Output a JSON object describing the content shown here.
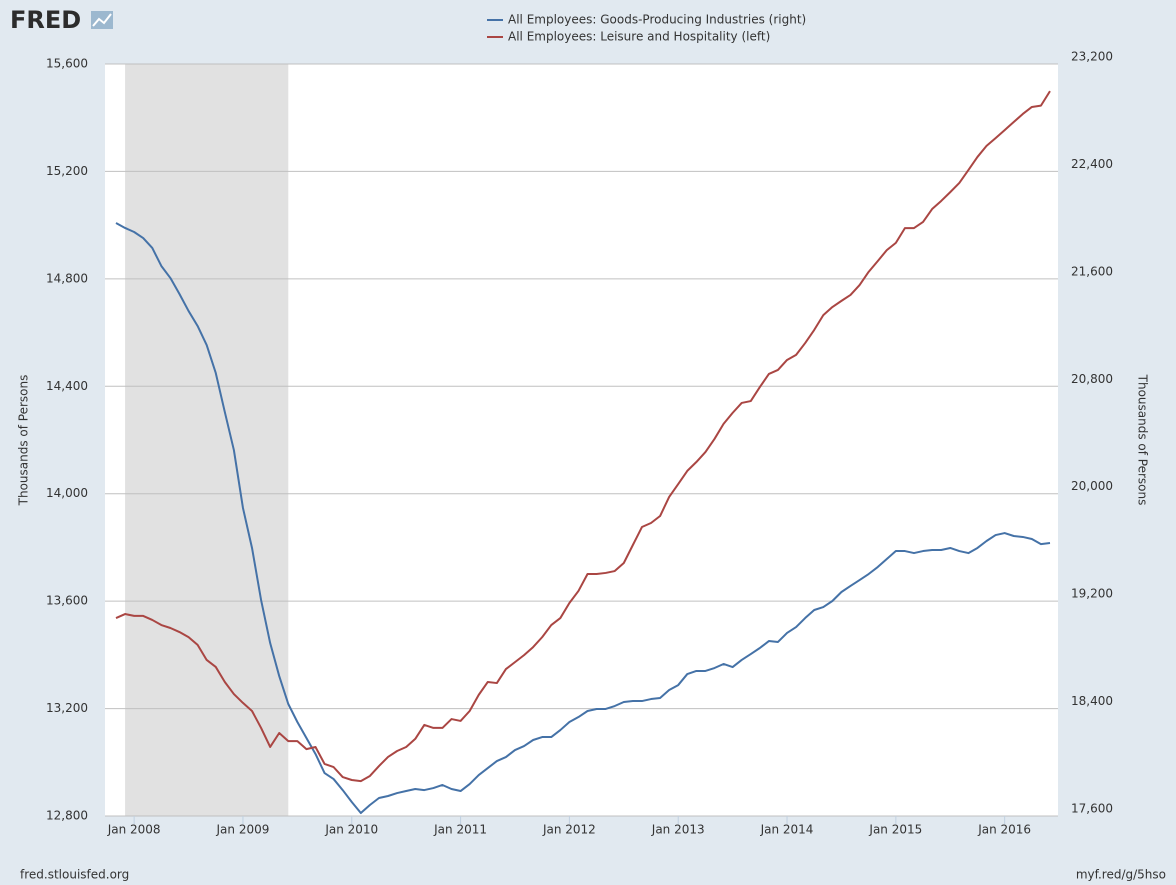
{
  "chart_data": {
    "type": "line",
    "logo": "FRED",
    "ylabel": "Thousands of Persons",
    "y2label": "Thousands of Persons",
    "source": "fred.stlouisfed.org",
    "link": "myf.red/g/5hso",
    "grid": true,
    "recessions": [
      {
        "start": "2007-12",
        "end": "2009-06"
      }
    ],
    "xlim": [
      "2007-11",
      "2016-06"
    ],
    "xticks": [
      {
        "value": "2008-01",
        "label": "Jan 2008"
      },
      {
        "value": "2009-01",
        "label": "Jan 2009"
      },
      {
        "value": "2010-01",
        "label": "Jan 2010"
      },
      {
        "value": "2011-01",
        "label": "Jan 2011"
      },
      {
        "value": "2012-01",
        "label": "Jan 2012"
      },
      {
        "value": "2013-01",
        "label": "Jan 2013"
      },
      {
        "value": "2014-01",
        "label": "Jan 2014"
      },
      {
        "value": "2015-01",
        "label": "Jan 2015"
      },
      {
        "value": "2016-01",
        "label": "Jan 2016"
      }
    ],
    "ylim": [
      12800,
      15600
    ],
    "yticks": [
      {
        "value": 12800,
        "label": "12,800"
      },
      {
        "value": 13200,
        "label": "13,200"
      },
      {
        "value": 13600,
        "label": "13,600"
      },
      {
        "value": 14000,
        "label": "14,000"
      },
      {
        "value": 14400,
        "label": "14,400"
      },
      {
        "value": 14800,
        "label": "14,800"
      },
      {
        "value": 15200,
        "label": "15,200"
      },
      {
        "value": 15600,
        "label": "15,600"
      }
    ],
    "y2lim": [
      17600,
      23200
    ],
    "y2ticks": [
      {
        "value": 17600,
        "label": "17,600"
      },
      {
        "value": 18400,
        "label": "18,400"
      },
      {
        "value": 19200,
        "label": "19,200"
      },
      {
        "value": 20000,
        "label": "20,000"
      },
      {
        "value": 20800,
        "label": "20,800"
      },
      {
        "value": 21600,
        "label": "21,600"
      },
      {
        "value": 22400,
        "label": "22,400"
      },
      {
        "value": 23200,
        "label": "23,200"
      }
    ],
    "x": [
      "2007-11",
      "2007-12",
      "2008-01",
      "2008-02",
      "2008-03",
      "2008-04",
      "2008-05",
      "2008-06",
      "2008-07",
      "2008-08",
      "2008-09",
      "2008-10",
      "2008-11",
      "2008-12",
      "2009-01",
      "2009-02",
      "2009-03",
      "2009-04",
      "2009-05",
      "2009-06",
      "2009-07",
      "2009-08",
      "2009-09",
      "2009-10",
      "2009-11",
      "2009-12",
      "2010-01",
      "2010-02",
      "2010-03",
      "2010-04",
      "2010-05",
      "2010-06",
      "2010-07",
      "2010-08",
      "2010-09",
      "2010-10",
      "2010-11",
      "2010-12",
      "2011-01",
      "2011-02",
      "2011-03",
      "2011-04",
      "2011-05",
      "2011-06",
      "2011-07",
      "2011-08",
      "2011-09",
      "2011-10",
      "2011-11",
      "2011-12",
      "2012-01",
      "2012-02",
      "2012-03",
      "2012-04",
      "2012-05",
      "2012-06",
      "2012-07",
      "2012-08",
      "2012-09",
      "2012-10",
      "2012-11",
      "2012-12",
      "2013-01",
      "2013-02",
      "2013-03",
      "2013-04",
      "2013-05",
      "2013-06",
      "2013-07",
      "2013-08",
      "2013-09",
      "2013-10",
      "2013-11",
      "2013-12",
      "2014-01",
      "2014-02",
      "2014-03",
      "2014-04",
      "2014-05",
      "2014-06",
      "2014-07",
      "2014-08",
      "2014-09",
      "2014-10",
      "2014-11",
      "2014-12",
      "2015-01",
      "2015-02",
      "2015-03",
      "2015-04",
      "2015-05",
      "2015-06",
      "2015-07",
      "2015-08",
      "2015-09",
      "2015-10",
      "2015-11",
      "2015-12",
      "2016-01",
      "2016-02",
      "2016-03",
      "2016-04",
      "2016-05",
      "2016-06"
    ],
    "series": [
      {
        "name": "All Employees: Goods-Producing Industries (right)",
        "color": "#4572a7",
        "axis": "y2",
        "values": [
          22016,
          21979,
          21949,
          21904,
          21830,
          21696,
          21606,
          21487,
          21361,
          21249,
          21107,
          20899,
          20608,
          20325,
          19894,
          19596,
          19208,
          18888,
          18642,
          18434,
          18300,
          18181,
          18062,
          17920,
          17875,
          17793,
          17704,
          17622,
          17682,
          17734,
          17749,
          17771,
          17786,
          17801,
          17793,
          17808,
          17831,
          17801,
          17786,
          17838,
          17905,
          17957,
          18009,
          18039,
          18091,
          18121,
          18166,
          18188,
          18188,
          18240,
          18300,
          18337,
          18382,
          18397,
          18397,
          18419,
          18449,
          18456,
          18456,
          18471,
          18479,
          18538,
          18575,
          18657,
          18680,
          18680,
          18702,
          18732,
          18709,
          18762,
          18806,
          18851,
          18903,
          18896,
          18963,
          19007,
          19074,
          19134,
          19156,
          19201,
          19268,
          19313,
          19357,
          19402,
          19454,
          19514,
          19573,
          19573,
          19558,
          19573,
          19581,
          19581,
          19596,
          19573,
          19558,
          19596,
          19648,
          19692,
          19707,
          19685,
          19678,
          19663,
          19625,
          19633
        ]
      },
      {
        "name": "All Employees: Leisure and Hospitality (left)",
        "color": "#aa4643",
        "axis": "y",
        "values": [
          13537,
          13552,
          13545,
          13545,
          13530,
          13511,
          13500,
          13485,
          13466,
          13437,
          13381,
          13355,
          13299,
          13254,
          13221,
          13191,
          13128,
          13057,
          13109,
          13079,
          13079,
          13049,
          13057,
          12994,
          12982,
          12945,
          12934,
          12930,
          12949,
          12986,
          13020,
          13042,
          13057,
          13087,
          13139,
          13128,
          13128,
          13161,
          13154,
          13191,
          13251,
          13299,
          13295,
          13347,
          13373,
          13399,
          13429,
          13466,
          13511,
          13537,
          13593,
          13638,
          13701,
          13701,
          13705,
          13712,
          13742,
          13809,
          13876,
          13891,
          13917,
          13988,
          14036,
          14085,
          14118,
          14155,
          14204,
          14260,
          14301,
          14338,
          14345,
          14397,
          14446,
          14461,
          14498,
          14517,
          14561,
          14610,
          14665,
          14695,
          14718,
          14740,
          14777,
          14826,
          14866,
          14907,
          14934,
          14989,
          14989,
          15012,
          15060,
          15090,
          15123,
          15157,
          15205,
          15254,
          15295,
          15324,
          15354,
          15384,
          15414,
          15440,
          15445,
          15499
        ]
      }
    ]
  }
}
